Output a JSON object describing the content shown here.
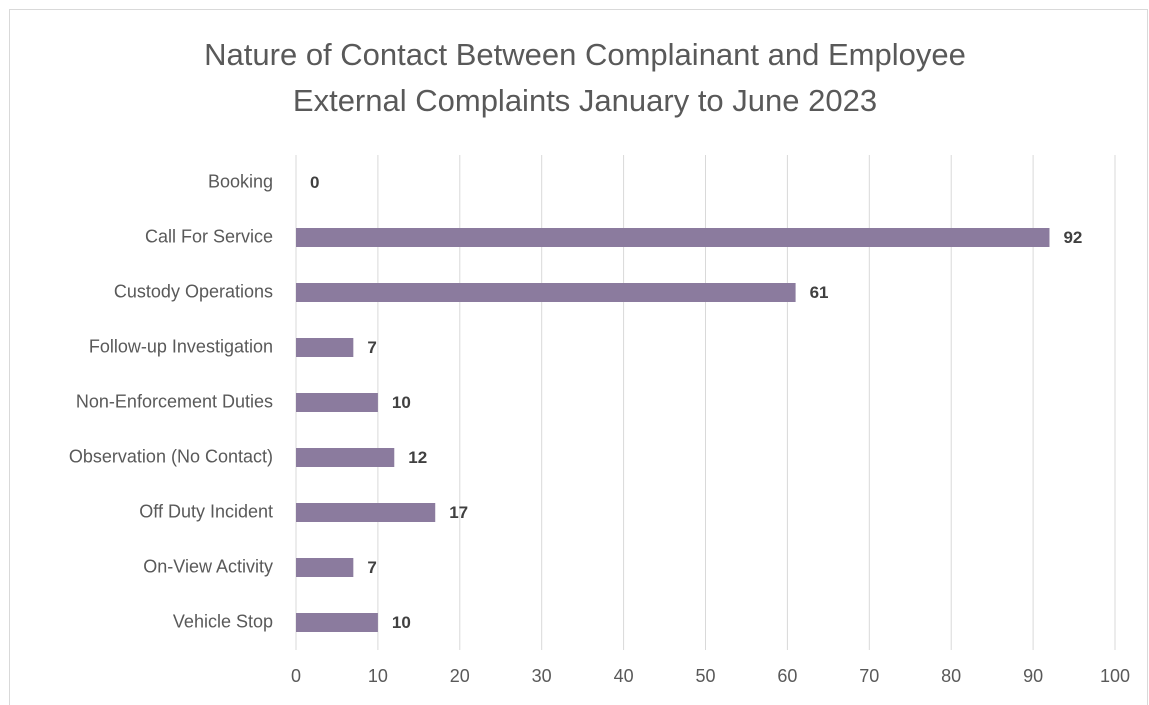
{
  "chart_data": {
    "type": "bar",
    "orientation": "horizontal",
    "title": "Nature of Contact Between Complainant and Employee",
    "subtitle": "External Complaints January to June 2023",
    "categories": [
      "Booking",
      "Call For Service",
      "Custody Operations",
      "Follow-up Investigation",
      "Non-Enforcement Duties",
      "Observation (No Contact)",
      "Off Duty Incident",
      "On-View Activity",
      "Vehicle Stop"
    ],
    "values": [
      0,
      92,
      61,
      7,
      10,
      12,
      17,
      7,
      10
    ],
    "color": "#8b7b9e",
    "xlim": [
      0,
      100
    ],
    "xticks": [
      0,
      10,
      20,
      30,
      40,
      50,
      60,
      70,
      80,
      90,
      100
    ],
    "grid": true
  }
}
